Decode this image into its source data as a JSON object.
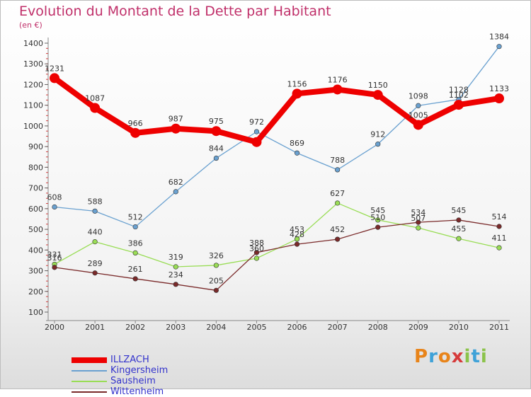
{
  "header": {
    "title": "Evolution du Montant de la Dette par Habitant",
    "subtitle": "(en €)"
  },
  "logo": {
    "text": "Proxiti",
    "colors": [
      "#e8841a",
      "#3fa2d8",
      "#e8841a",
      "#d63b3b",
      "#8bc34a",
      "#3fa2d8",
      "#8bc34a"
    ]
  },
  "chart_data": {
    "type": "line",
    "title": "Evolution du Montant de la Dette par Habitant",
    "subtitle": "(en €)",
    "x": [
      "2000",
      "2001",
      "2002",
      "2003",
      "2004",
      "2005",
      "2006",
      "2007",
      "2008",
      "2009",
      "2010",
      "2011"
    ],
    "ylim": [
      100,
      1400
    ],
    "yticks": [
      100,
      200,
      300,
      400,
      500,
      600,
      700,
      800,
      900,
      1000,
      1100,
      1200,
      1300,
      1400
    ],
    "grid": false,
    "legend_position": "bottom-left",
    "series": [
      {
        "name": "ILLZACH",
        "color": "#ee0000",
        "width": 8,
        "values": [
          1231,
          1087,
          966,
          987,
          975,
          922,
          1156,
          1176,
          1150,
          1005,
          1102,
          1133
        ],
        "labels": [
          "1231",
          "1087",
          "966",
          "987",
          "975",
          "",
          "1156",
          "1176",
          "1150",
          "1005",
          "1102",
          "1133"
        ]
      },
      {
        "name": "Kingersheim",
        "color": "#6aa1d0",
        "width": 1.3,
        "values": [
          608,
          588,
          512,
          682,
          844,
          972,
          869,
          788,
          912,
          1098,
          1128,
          1384
        ],
        "labels": [
          "608",
          "588",
          "512",
          "682",
          "844",
          "972",
          "869",
          "788",
          "912",
          "1098",
          "1128",
          "1384"
        ]
      },
      {
        "name": "Sausheim",
        "color": "#99dd55",
        "width": 1.3,
        "values": [
          331,
          440,
          386,
          319,
          326,
          360,
          453,
          627,
          545,
          507,
          455,
          411
        ],
        "labels": [
          "331",
          "440",
          "386",
          "319",
          "326",
          "360",
          "453",
          "627",
          "545",
          "507",
          "455",
          "411"
        ]
      },
      {
        "name": "Wittenheim",
        "color": "#7a2a2a",
        "width": 1.3,
        "values": [
          316,
          289,
          261,
          234,
          205,
          388,
          428,
          452,
          510,
          534,
          545,
          514
        ],
        "labels": [
          "316",
          "289",
          "261",
          "234",
          "205",
          "388",
          "428",
          "452",
          "510",
          "534",
          "545",
          "514"
        ]
      }
    ]
  }
}
